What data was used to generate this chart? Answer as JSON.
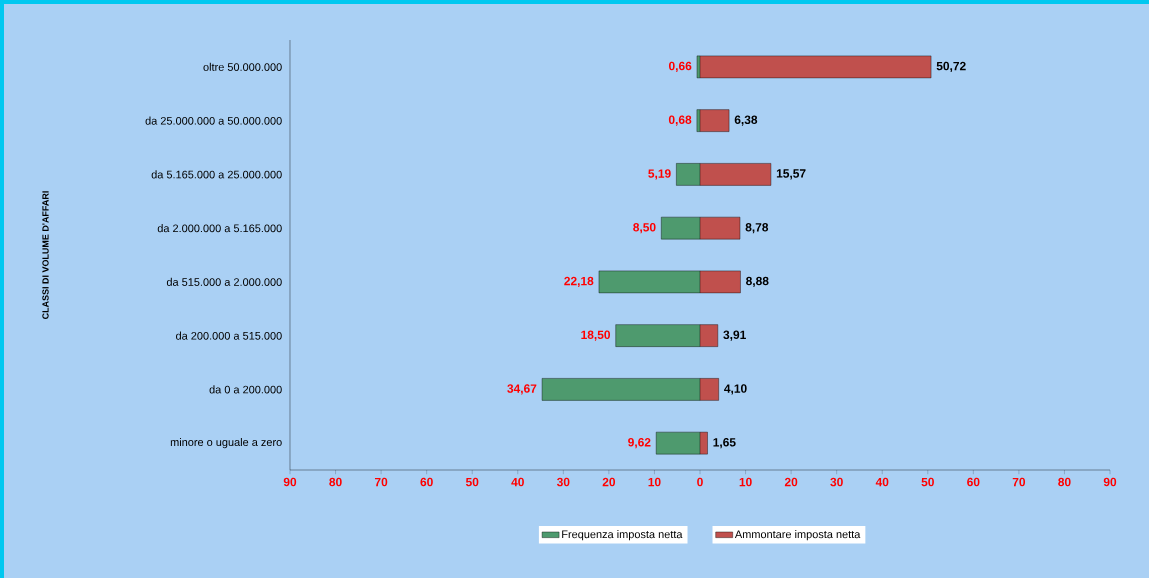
{
  "chart_data": [
    {
      "type": "bar",
      "orientation": "horizontal",
      "ylabel": "CLASSI DI VOLUME D'AFFARI",
      "categories": [
        "oltre 50.000.000",
        "da 25.000.000 a 50.000.000",
        "da 5.165.000 a 25.000.000",
        "da 2.000.000 a 5.165.000",
        "da 515.000 a 2.000.000",
        "da 200.000 a 515.000",
        "da 0 a 200.000",
        "minore o uguale a zero"
      ],
      "series": [
        {
          "name": "Frequenza imposta netta",
          "color": "#4e9a6e",
          "values": [
            0.66,
            0.68,
            5.19,
            8.5,
            22.18,
            18.5,
            34.67,
            9.62
          ],
          "value_labels": [
            "0,66",
            "0,68",
            "5,19",
            "8,50",
            "22,18",
            "18,50",
            "34,67",
            "9,62"
          ]
        }
      ],
      "xlim": [
        90,
        0
      ],
      "xticks": [
        90,
        80,
        70,
        60,
        50,
        40,
        30,
        20,
        10
      ],
      "legend": "bottom"
    },
    {
      "type": "bar",
      "orientation": "horizontal",
      "categories": [
        null,
        null,
        null,
        null,
        null,
        null,
        null,
        null
      ],
      "series": [
        {
          "name": "Ammontare imposta netta",
          "color": "#c0504d",
          "values": [
            50.72,
            6.38,
            15.57,
            8.78,
            8.88,
            3.91,
            4.1,
            1.65
          ],
          "value_labels": [
            "50,72",
            "6,38",
            "15,57",
            "8,78",
            "8,88",
            "3,91",
            "4,10",
            "1,65"
          ]
        }
      ],
      "xlim": [
        0,
        90
      ],
      "xticks": [
        0,
        10,
        20,
        30,
        40,
        50,
        60,
        70,
        80,
        90
      ],
      "tick_labels": "x",
      "legend": "bottom"
    }
  ]
}
